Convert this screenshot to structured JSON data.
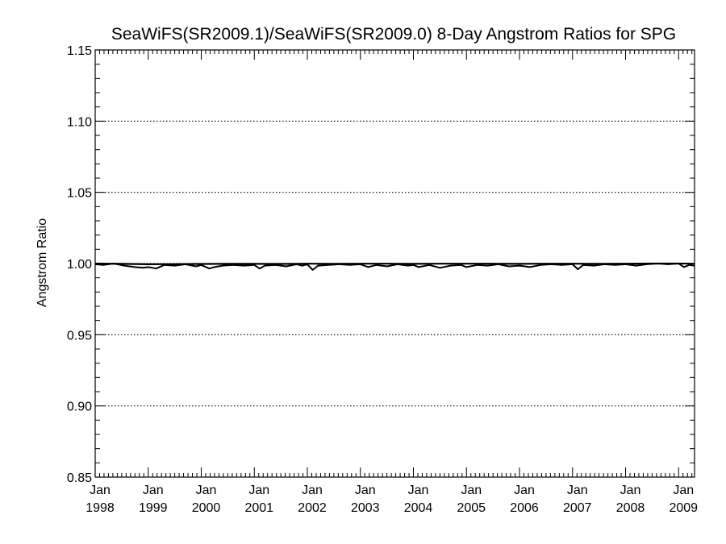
{
  "chart_data": {
    "type": "line",
    "title": "SeaWiFS(SR2009.1)/SeaWiFS(SR2009.0) 8-Day Angstrom Ratios for SPG",
    "xlabel": "",
    "ylabel": "Angstrom Ratio",
    "ylim": [
      0.85,
      1.15
    ],
    "xlim": [
      1998.0,
      2009.3
    ],
    "y_ticks": [
      "0.85",
      "0.90",
      "0.95",
      "1.00",
      "1.05",
      "1.10",
      "1.15"
    ],
    "y_tick_values": [
      0.85,
      0.9,
      0.95,
      1.0,
      1.05,
      1.1,
      1.15
    ],
    "x_ticks": [
      {
        "month": "Jan",
        "year": "1998",
        "value": 1998
      },
      {
        "month": "Jan",
        "year": "1999",
        "value": 1999
      },
      {
        "month": "Jan",
        "year": "2000",
        "value": 2000
      },
      {
        "month": "Jan",
        "year": "2001",
        "value": 2001
      },
      {
        "month": "Jan",
        "year": "2002",
        "value": 2002
      },
      {
        "month": "Jan",
        "year": "2003",
        "value": 2003
      },
      {
        "month": "Jan",
        "year": "2004",
        "value": 2004
      },
      {
        "month": "Jan",
        "year": "2005",
        "value": 2005
      },
      {
        "month": "Jan",
        "year": "2006",
        "value": 2006
      },
      {
        "month": "Jan",
        "year": "2007",
        "value": 2007
      },
      {
        "month": "Jan",
        "year": "2008",
        "value": 2008
      },
      {
        "month": "Jan",
        "year": "2009",
        "value": 2009
      }
    ],
    "grid": "dotted horizontal at major y ticks",
    "series": [
      {
        "x": [
          1998.0,
          1998.15,
          1998.35,
          1998.55,
          1998.75,
          1998.9,
          1999.0,
          1999.15,
          1999.3,
          1999.5,
          1999.7,
          1999.9,
          2000.0,
          2000.15,
          2000.25,
          2000.4,
          2000.6,
          2000.8,
          2001.0,
          2001.1,
          2001.2,
          2001.4,
          2001.6,
          2001.8,
          2001.9,
          2002.0,
          2002.1,
          2002.2,
          2002.4,
          2002.6,
          2002.8,
          2003.0,
          2003.15,
          2003.3,
          2003.5,
          2003.7,
          2003.9,
          2004.0,
          2004.1,
          2004.3,
          2004.5,
          2004.7,
          2004.9,
          2005.0,
          2005.2,
          2005.4,
          2005.6,
          2005.8,
          2006.0,
          2006.2,
          2006.4,
          2006.6,
          2006.8,
          2007.0,
          2007.1,
          2007.2,
          2007.4,
          2007.6,
          2007.8,
          2008.0,
          2008.2,
          2008.4,
          2008.6,
          2008.8,
          2009.0,
          2009.1,
          2009.2,
          2009.3
        ],
        "y": [
          0.9995,
          0.999,
          1.0,
          0.9985,
          0.9975,
          0.997,
          0.9975,
          0.9965,
          0.999,
          0.9985,
          0.9995,
          0.998,
          0.999,
          0.9965,
          0.9975,
          0.9985,
          0.999,
          0.9985,
          0.999,
          0.9965,
          0.9985,
          0.999,
          0.998,
          0.9995,
          0.9985,
          0.9995,
          0.9955,
          0.9985,
          0.999,
          0.9995,
          0.999,
          0.9995,
          0.9975,
          0.999,
          0.998,
          0.9995,
          0.9985,
          0.999,
          0.9975,
          0.999,
          0.997,
          0.9985,
          0.999,
          0.9975,
          0.999,
          0.9985,
          0.9995,
          0.998,
          0.9985,
          0.9975,
          0.999,
          0.9995,
          0.999,
          0.9995,
          0.996,
          0.999,
          0.9985,
          0.9995,
          0.999,
          0.9995,
          0.9985,
          0.9995,
          1.0,
          0.9995,
          1.0,
          0.9975,
          0.999,
          0.9985
        ]
      },
      {
        "x": [
          1998.0,
          1998.5,
          1999.0,
          1999.5,
          2000.0,
          2000.5,
          2001.0,
          2001.5,
          2002.0,
          2002.5,
          2003.0,
          2003.5,
          2004.0,
          2004.5,
          2005.0,
          2005.5,
          2006.0,
          2006.5,
          2007.0,
          2007.5,
          2008.0,
          2008.5,
          2009.0,
          2009.3
        ],
        "y": [
          1.0,
          0.9998,
          0.9995,
          0.9996,
          0.9997,
          0.9998,
          0.9998,
          0.9997,
          0.9999,
          0.9998,
          0.9999,
          0.9999,
          0.9998,
          0.9999,
          0.9999,
          0.9999,
          0.9998,
          0.9999,
          0.9999,
          0.9998,
          0.9999,
          1.0,
          1.0,
          0.9999
        ]
      }
    ]
  }
}
